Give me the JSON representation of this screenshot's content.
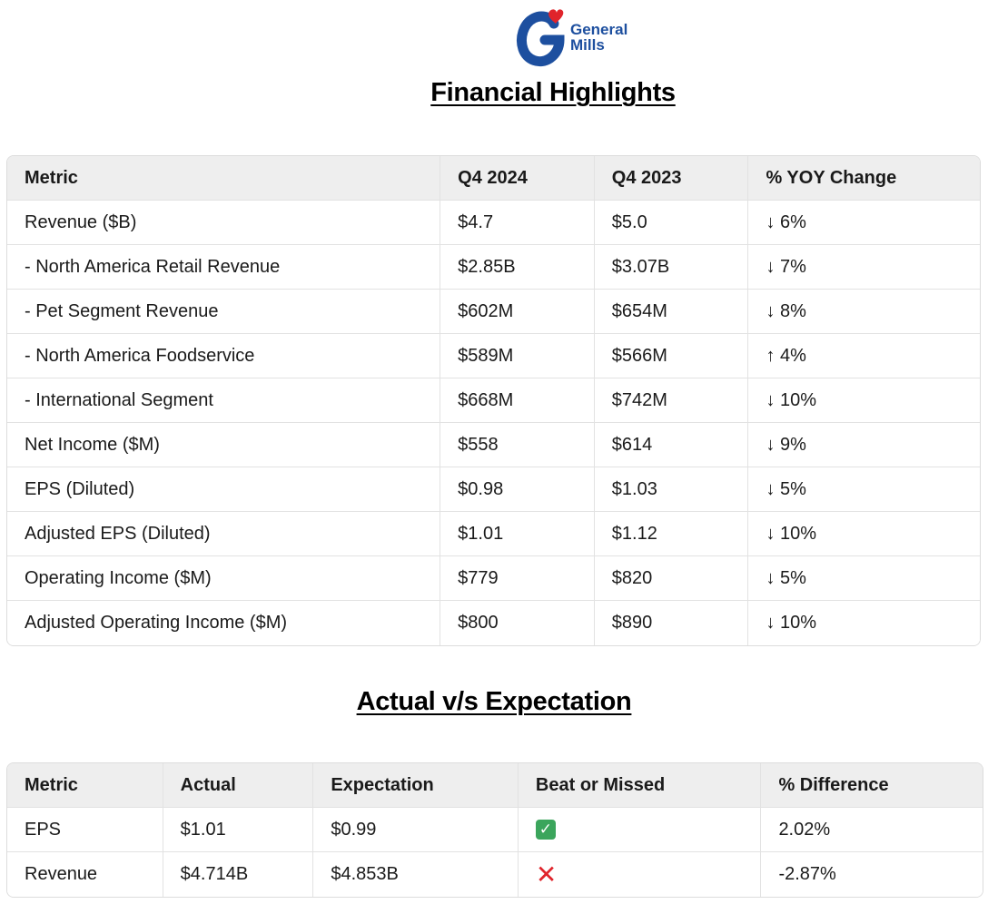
{
  "brand": {
    "name_line1": "General",
    "name_line2": "Mills",
    "logo_letter": "G",
    "color": "#1d4f9f",
    "heart_color": "#e0242b"
  },
  "financial_highlights": {
    "title": "Financial Highlights",
    "headers": [
      "Metric",
      "Q4 2024",
      "Q4 2023",
      "% YOY Change"
    ],
    "rows": [
      [
        "Revenue ($B)",
        "$4.7",
        "$5.0",
        "↓ 6%"
      ],
      [
        "- North America Retail Revenue",
        "$2.85B",
        "$3.07B",
        "↓ 7%"
      ],
      [
        "- Pet Segment Revenue",
        "$602M",
        "$654M",
        "↓ 8%"
      ],
      [
        "- North America Foodservice",
        "$589M",
        "$566M",
        "↑ 4%"
      ],
      [
        "- International Segment",
        "$668M",
        "$742M",
        "↓ 10%"
      ],
      [
        "Net Income ($M)",
        "$558",
        "$614",
        "↓ 9%"
      ],
      [
        "EPS (Diluted)",
        "$0.98",
        "$1.03",
        "↓ 5%"
      ],
      [
        "Adjusted EPS (Diluted)",
        "$1.01",
        "$1.12",
        "↓ 10%"
      ],
      [
        "Operating Income ($M)",
        "$779",
        "$820",
        "↓ 5%"
      ],
      [
        "Adjusted Operating Income ($M)",
        "$800",
        "$890",
        "↓ 10%"
      ]
    ]
  },
  "actual_vs_expectation": {
    "title": "Actual v/s Expectation",
    "headers": [
      "Metric",
      "Actual",
      "Expectation",
      "Beat or Missed",
      "% Difference"
    ],
    "rows": [
      {
        "metric": "EPS",
        "actual": "$1.01",
        "expectation": "$0.99",
        "result_icon": "check-mark-icon",
        "difference": "2.02%"
      },
      {
        "metric": "Revenue",
        "actual": "$4.714B",
        "expectation": "$4.853B",
        "result_icon": "cross-mark-icon",
        "difference": "-2.87%"
      }
    ],
    "check_color": "#3ba55c",
    "cross_color": "#e0242b"
  }
}
